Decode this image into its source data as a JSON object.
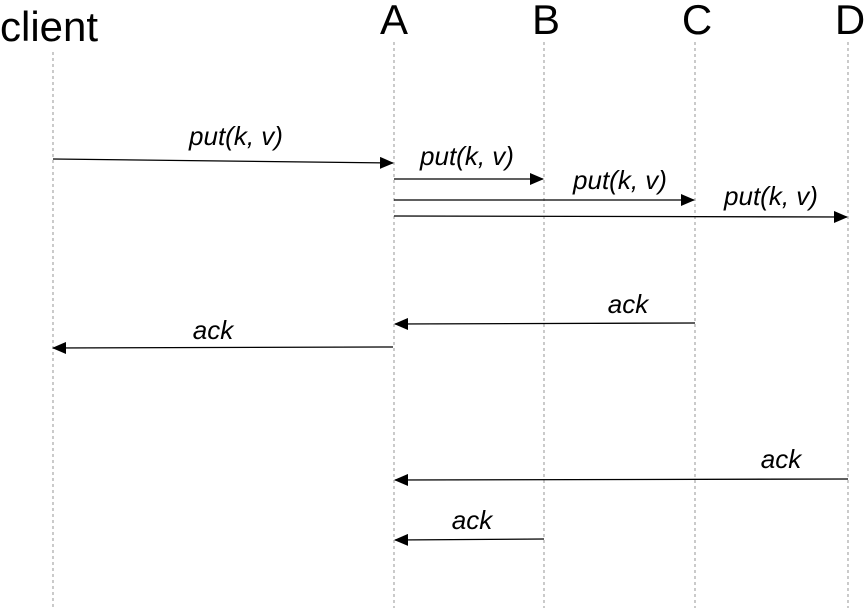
{
  "participants": [
    {
      "id": "client",
      "label": "client"
    },
    {
      "id": "A",
      "label": "A"
    },
    {
      "id": "B",
      "label": "B"
    },
    {
      "id": "C",
      "label": "C"
    },
    {
      "id": "D",
      "label": "D"
    }
  ],
  "messages": [
    {
      "from": "client",
      "to": "A",
      "label": "put(k, v)"
    },
    {
      "from": "A",
      "to": "B",
      "label": "put(k, v)"
    },
    {
      "from": "A",
      "to": "C",
      "label": "put(k, v)"
    },
    {
      "from": "A",
      "to": "D",
      "label": "put(k, v)"
    },
    {
      "from": "C",
      "to": "A",
      "label": "ack"
    },
    {
      "from": "A",
      "to": "client",
      "label": "ack"
    },
    {
      "from": "D",
      "to": "A",
      "label": "ack"
    },
    {
      "from": "B",
      "to": "A",
      "label": "ack"
    }
  ],
  "colors": {
    "line": "#000000",
    "lifeline": "#a8a8a8"
  }
}
